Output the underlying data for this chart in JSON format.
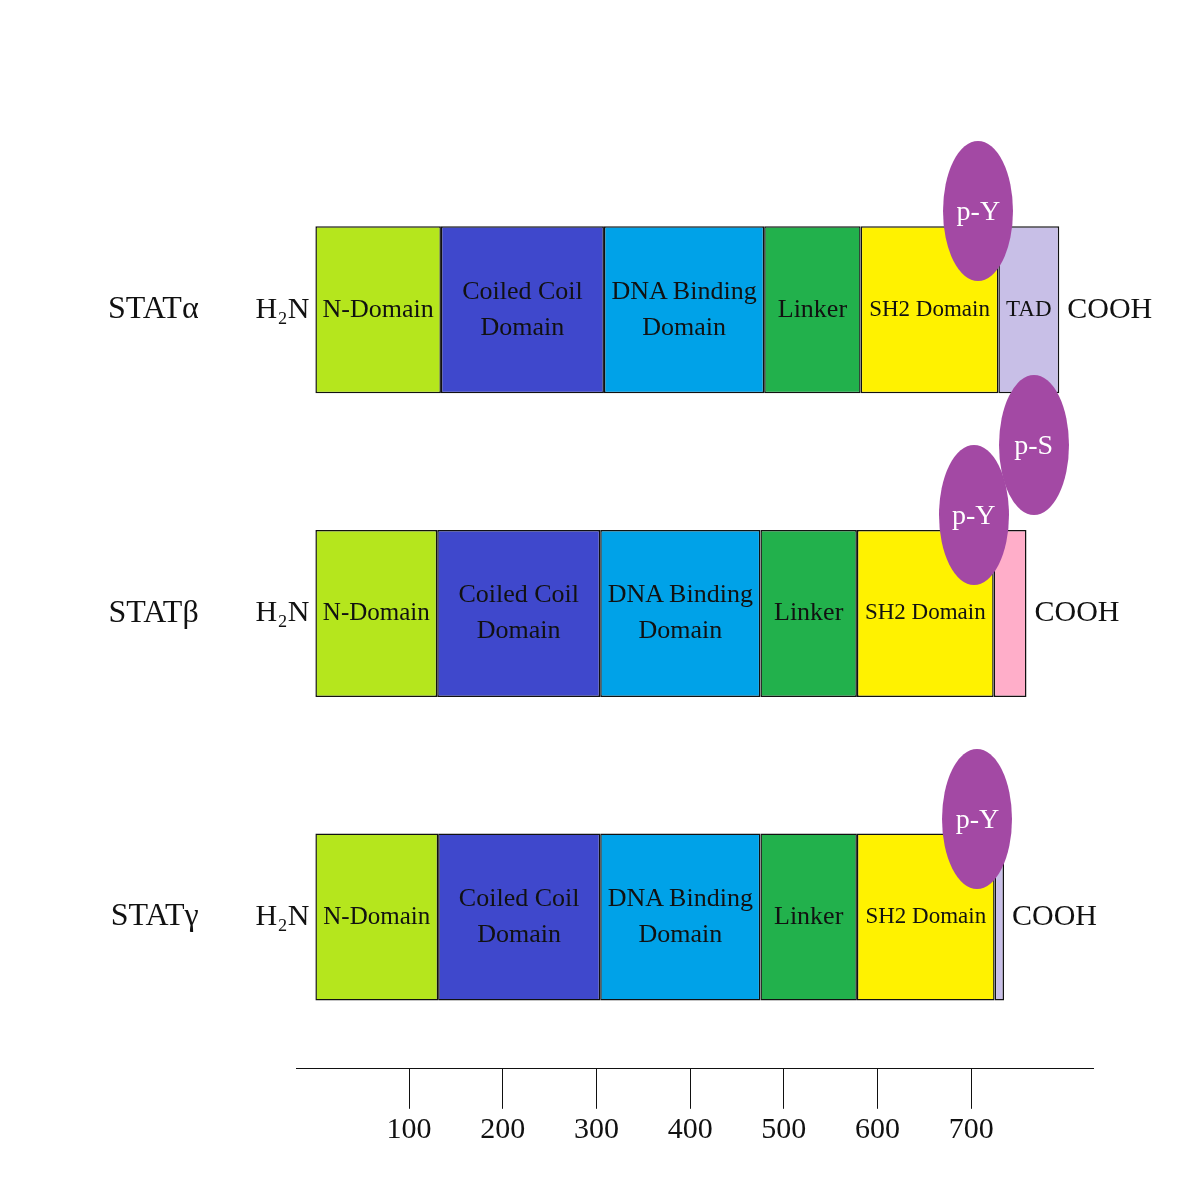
{
  "chart_data": {
    "type": "bar",
    "orientation": "horizontal",
    "stacked": true,
    "categories": [
      "STATα",
      "STATβ",
      "STATγ"
    ],
    "series": [
      {
        "values": [
          134,
          130,
          131
        ],
        "colors": [
          "#b5e61d",
          "#b5e61d",
          "#b5e61d"
        ],
        "value_labels": [
          "N-Domain",
          "N-Domain",
          "N-Domain"
        ]
      },
      {
        "values": [
          174,
          174,
          173
        ],
        "colors": [
          "#3f48cc",
          "#3f48cc",
          "#3f48cc"
        ],
        "value_labels": [
          "Coiled Coil Domain",
          "Coiled Coil Domain",
          "Coiled Coil Domain"
        ]
      },
      {
        "values": [
          171,
          171,
          171
        ],
        "colors": [
          "#00a2e8",
          "#00a2e8",
          "#00a2e8"
        ],
        "value_labels": [
          "DNA Binding Domain",
          "DNA Binding Domain",
          "DNA Binding Domain"
        ]
      },
      {
        "values": [
          103,
          103,
          103
        ],
        "colors": [
          "#22b14c",
          "#22b14c",
          "#22b14c"
        ],
        "value_labels": [
          "Linker",
          "Linker",
          "Linker"
        ]
      },
      {
        "values": [
          147,
          146,
          147
        ],
        "colors": [
          "#fff200",
          "#fff200",
          "#fff200"
        ],
        "value_labels": [
          "SH2 Domain",
          "SH2 Domain",
          "SH2 Domain"
        ]
      },
      {
        "values": [
          65,
          35,
          10
        ],
        "colors": [
          "#c8bfe7",
          "#ffaec9",
          "#c8bfe7"
        ],
        "value_labels": [
          "TAD",
          null,
          null
        ]
      }
    ],
    "xlim": [
      -20,
      830
    ],
    "xticks": [
      100,
      200,
      300,
      400,
      500,
      600,
      700
    ],
    "grid": false,
    "annotations": [
      {
        "text": "H₂N",
        "x": 0,
        "y": "STATα"
      },
      {
        "text": "H₂N",
        "x": 0,
        "y": "STATβ"
      },
      {
        "text": "H₂N",
        "x": 0,
        "y": "STATγ"
      },
      {
        "text": "COOH",
        "x": 794,
        "y": "STATα"
      },
      {
        "text": "COOH",
        "x": 759,
        "y": "STATβ"
      },
      {
        "text": "COOH",
        "x": 735,
        "y": "STATγ"
      },
      {
        "text": "p-Y",
        "x": 729,
        "y": "STATα"
      },
      {
        "text": "p-Y",
        "x": 724,
        "y": "STATβ"
      },
      "p-S",
      {
        "text": "p-Y",
        "x": 728,
        "y": "STATγ"
      }
    ]
  }
}
